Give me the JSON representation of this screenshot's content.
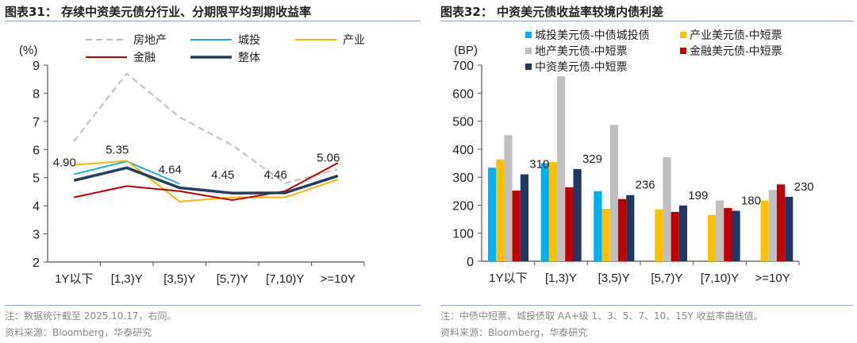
{
  "left": {
    "title": "图表31：  存续中资美元债分行业、分期限平均到期收益率",
    "note": "注：数据统计截至 2025.10.17，右同。",
    "source": "资料来源：Bloomberg，华泰研究"
  },
  "right": {
    "title": "图表32：  中资美元债收益率较境内债利差",
    "note": "注：中债中短票、城投债取 AA+级 1、3、5、7、10、15Y 收益率曲线值。",
    "source": "资料来源：Bloomberg，华泰研究"
  },
  "chart_data": [
    {
      "type": "line",
      "ylabel": "(%)",
      "ylim": [
        2,
        9
      ],
      "yticks": [
        "2",
        "3",
        "4",
        "5",
        "6",
        "7",
        "8",
        "9"
      ],
      "categories": [
        "1Y以下",
        "[1,3)Y",
        "[3,5)Y",
        "[5,7)Y",
        "[7,10)Y",
        ">=10Y"
      ],
      "series": [
        {
          "name": "房地产",
          "color": "#BFBFBF",
          "dashed": true,
          "values": [
            6.3,
            8.7,
            7.15,
            6.15,
            4.8,
            5.3
          ]
        },
        {
          "name": "城投",
          "color": "#1AADE6",
          "values": [
            5.12,
            5.58,
            4.78,
            null,
            null,
            null
          ]
        },
        {
          "name": "产业",
          "color": "#F5B800",
          "values": [
            5.45,
            5.6,
            4.15,
            4.3,
            4.3,
            4.93
          ]
        },
        {
          "name": "金融",
          "color": "#C00000",
          "values": [
            4.3,
            4.7,
            4.52,
            4.2,
            4.52,
            5.52
          ]
        },
        {
          "name": "整体",
          "color": "#243F60",
          "thick": true,
          "values": [
            4.9,
            5.35,
            4.64,
            4.45,
            4.46,
            5.06
          ],
          "labels": [
            "4.90",
            "5.35",
            "4.64",
            "4.45",
            "4.46",
            "5.06"
          ]
        }
      ]
    },
    {
      "type": "bar",
      "ylabel": "(BP)",
      "ylim": [
        0,
        700
      ],
      "yticks": [
        "0",
        "100",
        "200",
        "300",
        "400",
        "500",
        "600",
        "700"
      ],
      "categories": [
        "1Y以下",
        "[1,3)Y",
        "[3,5)Y",
        "[5,7)Y",
        "[7,10)Y",
        ">=10Y"
      ],
      "series": [
        {
          "name": "城投美元债-中债城投债",
          "color": "#00B0F0",
          "values": [
            334,
            350,
            250,
            null,
            null,
            null
          ]
        },
        {
          "name": "产业美元债-中短票",
          "color": "#FFC000",
          "values": [
            363,
            354,
            187,
            185,
            165,
            217
          ]
        },
        {
          "name": "地产美元债-中短票",
          "color": "#BFBFBF",
          "values": [
            450,
            660,
            487,
            371,
            217,
            254
          ]
        },
        {
          "name": "金融美元债-中短票",
          "color": "#C00000",
          "values": [
            252,
            264,
            222,
            176,
            190,
            274
          ]
        },
        {
          "name": "中资美元债-中短票",
          "color": "#203864",
          "values": [
            310,
            329,
            236,
            199,
            180,
            230
          ],
          "labels": [
            "310",
            "329",
            "236",
            "199",
            "180",
            "230"
          ]
        }
      ]
    }
  ]
}
